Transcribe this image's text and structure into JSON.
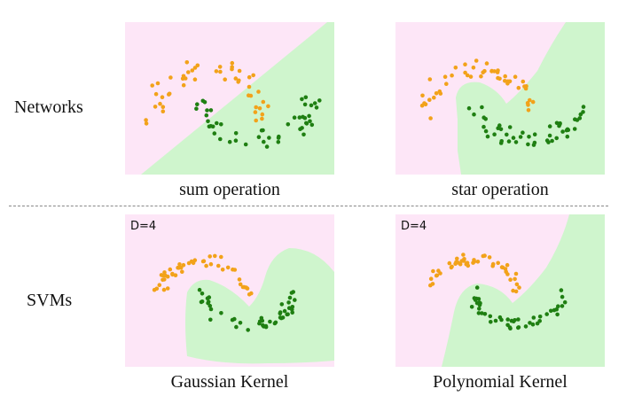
{
  "rows": {
    "networks": "Networks",
    "svms": "SVMs"
  },
  "panels": [
    {
      "id": "sum",
      "caption": "sum operation",
      "tag": ""
    },
    {
      "id": "star",
      "caption": "star operation",
      "tag": ""
    },
    {
      "id": "gauss",
      "caption": "Gaussian Kernel",
      "tag": "D=4"
    },
    {
      "id": "poly",
      "caption": "Polynomial Kernel",
      "tag": "D=4"
    }
  ],
  "colors": {
    "pink_region": "#fde6f7",
    "green_region": "#cff5cd",
    "orange_points": "#f2a21a",
    "green_points": "#1f7f12",
    "divider": "#888888"
  }
}
